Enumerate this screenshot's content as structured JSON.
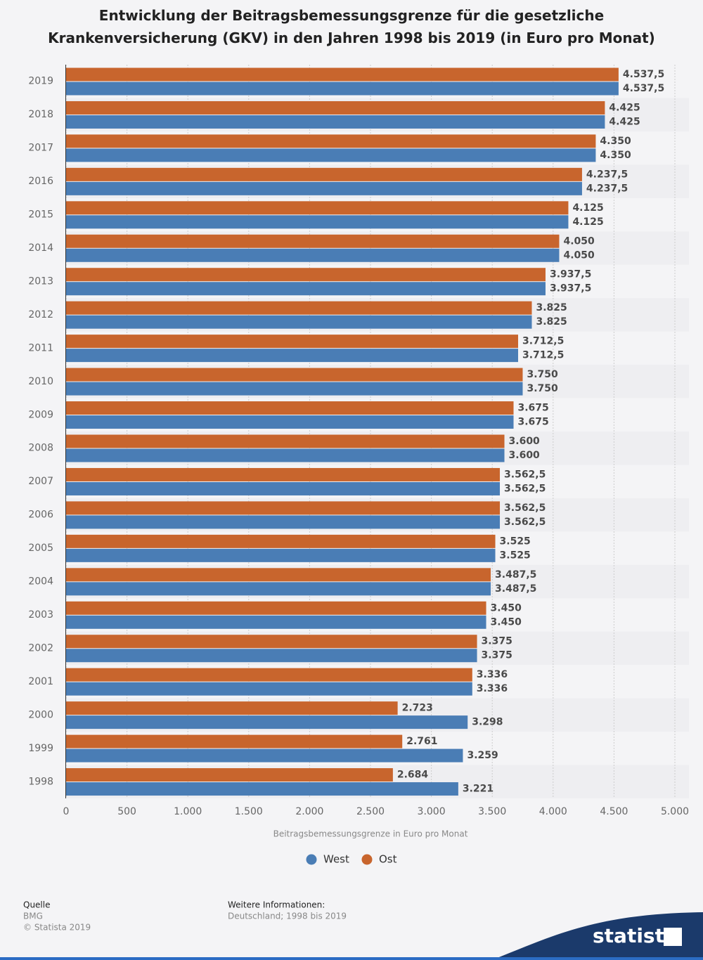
{
  "chart_data": {
    "type": "bar",
    "orientation": "horizontal",
    "title": "Entwicklung der Beitragsbemessungsgrenze für die gesetzliche Krankenversicherung (GKV) in den Jahren 1998 bis 2019 (in Euro pro Monat)",
    "x_label": "Beitragsbemessungsgrenze in Euro pro Monat",
    "categories": [
      "2019",
      "2018",
      "2017",
      "2016",
      "2015",
      "2014",
      "2013",
      "2012",
      "2011",
      "2010",
      "2009",
      "2008",
      "2007",
      "2006",
      "2005",
      "2004",
      "2003",
      "2002",
      "2001",
      "2000",
      "1999",
      "1998"
    ],
    "series": [
      {
        "name": "West",
        "color": "#4a7db5",
        "values": [
          4537.5,
          4425,
          4350,
          4237.5,
          4125,
          4050,
          3937.5,
          3825,
          3712.5,
          3750,
          3675,
          3600,
          3562.5,
          3562.5,
          3525,
          3487.5,
          3450,
          3375,
          3336,
          3298,
          3259,
          3221
        ],
        "value_labels": [
          "4.537,5",
          "4.425",
          "4.350",
          "4.237,5",
          "4.125",
          "4.050",
          "3.937,5",
          "3.825",
          "3.712,5",
          "3.750",
          "3.675",
          "3.600",
          "3.562,5",
          "3.562,5",
          "3.525",
          "3.487,5",
          "3.450",
          "3.375",
          "3.336",
          "3.298",
          "3.259",
          "3.221"
        ]
      },
      {
        "name": "Ost",
        "color": "#c8652d",
        "values": [
          4537.5,
          4425,
          4350,
          4237.5,
          4125,
          4050,
          3937.5,
          3825,
          3712.5,
          3750,
          3675,
          3600,
          3562.5,
          3562.5,
          3525,
          3487.5,
          3450,
          3375,
          3336,
          2723,
          2761,
          2684
        ],
        "value_labels": [
          "4.537,5",
          "4.425",
          "4.350",
          "4.237,5",
          "4.125",
          "4.050",
          "3.937,5",
          "3.825",
          "3.712,5",
          "3.750",
          "3.675",
          "3.600",
          "3.562,5",
          "3.562,5",
          "3.525",
          "3.487,5",
          "3.450",
          "3.375",
          "3.336",
          "2.723",
          "2.761",
          "2.684"
        ]
      }
    ],
    "xlim": [
      0,
      5000
    ],
    "xticks": [
      0,
      500,
      {
        "value": 1000,
        "label": "1.000"
      },
      {
        "value": 1500,
        "label": "1.500"
      },
      {
        "value": 2000,
        "label": "2.000"
      },
      {
        "value": 2500,
        "label": "2.500"
      },
      {
        "value": 3000,
        "label": "3.000"
      },
      {
        "value": 3500,
        "label": "3.500"
      },
      {
        "value": 4000,
        "label": "4.000"
      },
      {
        "value": 4500,
        "label": "4.500"
      },
      {
        "value": 5000,
        "label": "5.000"
      }
    ],
    "grid": true,
    "legend": "bottom",
    "source_label": "Quelle",
    "source": "BMG",
    "copyright": "© Statista 2019",
    "info_label": "Weitere Informationen:",
    "info": "Deutschland; 1998 bis 2019",
    "brand": "statista"
  }
}
